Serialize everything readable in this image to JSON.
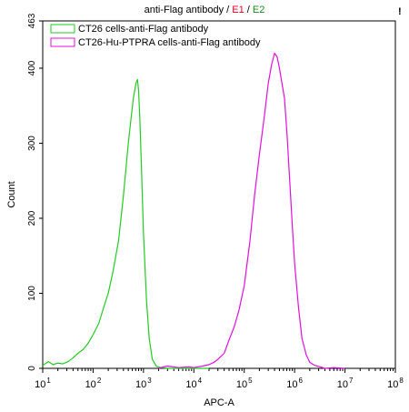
{
  "chart_data": {
    "type": "line",
    "title": {
      "text": "anti-Flag antibody",
      "separator1": " / ",
      "e1": "E1",
      "separator2": " / ",
      "e2": "E2",
      "e1_color": "#e8001c",
      "e2_color": "#1a8a1a"
    },
    "corner_mark": "!",
    "xlabel": "APC-A",
    "ylabel": "Count",
    "x_scale": "log",
    "xlim": [
      10,
      100000000
    ],
    "ylim": [
      0,
      463
    ],
    "x_ticks": [
      {
        "value": 10,
        "base": "10",
        "exp": "1"
      },
      {
        "value": 100,
        "base": "10",
        "exp": "2"
      },
      {
        "value": 1000,
        "base": "10",
        "exp": "3"
      },
      {
        "value": 10000,
        "base": "10",
        "exp": "4"
      },
      {
        "value": 100000,
        "base": "10",
        "exp": "5"
      },
      {
        "value": 1000000,
        "base": "10",
        "exp": "6"
      },
      {
        "value": 10000000,
        "base": "10",
        "exp": "7"
      },
      {
        "value": 100000000,
        "base": "10",
        "exp": "8"
      }
    ],
    "y_ticks": [
      {
        "value": 0,
        "label": "0"
      },
      {
        "value": 100,
        "label": "100"
      },
      {
        "value": 200,
        "label": "200"
      },
      {
        "value": 300,
        "label": "300"
      },
      {
        "value": 400,
        "label": "400"
      },
      {
        "value": 463,
        "label": "463"
      }
    ],
    "grid": false,
    "legend_position": "top-left",
    "series": [
      {
        "name": "CT26 cells-anti-Flag antibody",
        "color": "#22cc22",
        "points": [
          [
            10,
            4
          ],
          [
            13,
            9
          ],
          [
            16,
            5
          ],
          [
            20,
            7
          ],
          [
            25,
            6
          ],
          [
            32,
            9
          ],
          [
            40,
            14
          ],
          [
            50,
            20
          ],
          [
            63,
            25
          ],
          [
            79,
            33
          ],
          [
            100,
            45
          ],
          [
            130,
            60
          ],
          [
            160,
            80
          ],
          [
            200,
            100
          ],
          [
            250,
            130
          ],
          [
            320,
            170
          ],
          [
            400,
            230
          ],
          [
            500,
            300
          ],
          [
            560,
            330
          ],
          [
            630,
            360
          ],
          [
            710,
            380
          ],
          [
            760,
            385
          ],
          [
            800,
            370
          ],
          [
            850,
            330
          ],
          [
            900,
            280
          ],
          [
            1000,
            180
          ],
          [
            1150,
            90
          ],
          [
            1300,
            40
          ],
          [
            1500,
            12
          ],
          [
            1800,
            3
          ],
          [
            2200,
            1
          ],
          [
            3000,
            0
          ],
          [
            20000,
            0
          ]
        ]
      },
      {
        "name": "CT26-Hu-PTPRA cells-anti-Flag antibody",
        "color": "#e010e0",
        "points": [
          [
            2000,
            0
          ],
          [
            2500,
            2
          ],
          [
            3000,
            3
          ],
          [
            5000,
            1
          ],
          [
            8000,
            2
          ],
          [
            10000,
            1
          ],
          [
            15000,
            3
          ],
          [
            20000,
            5
          ],
          [
            25000,
            8
          ],
          [
            30000,
            12
          ],
          [
            40000,
            20
          ],
          [
            50000,
            38
          ],
          [
            63000,
            55
          ],
          [
            79000,
            78
          ],
          [
            100000,
            110
          ],
          [
            130000,
            170
          ],
          [
            160000,
            230
          ],
          [
            200000,
            285
          ],
          [
            250000,
            335
          ],
          [
            300000,
            380
          ],
          [
            350000,
            405
          ],
          [
            400000,
            420
          ],
          [
            450000,
            415
          ],
          [
            500000,
            400
          ],
          [
            560000,
            380
          ],
          [
            630000,
            360
          ],
          [
            710000,
            310
          ],
          [
            800000,
            250
          ],
          [
            900000,
            190
          ],
          [
            1000000,
            140
          ],
          [
            1200000,
            80
          ],
          [
            1400000,
            40
          ],
          [
            1700000,
            18
          ],
          [
            2000000,
            8
          ],
          [
            2500000,
            4
          ],
          [
            3200000,
            2
          ],
          [
            4000000,
            0
          ],
          [
            6000000,
            1
          ],
          [
            10000000,
            0
          ]
        ]
      }
    ]
  }
}
